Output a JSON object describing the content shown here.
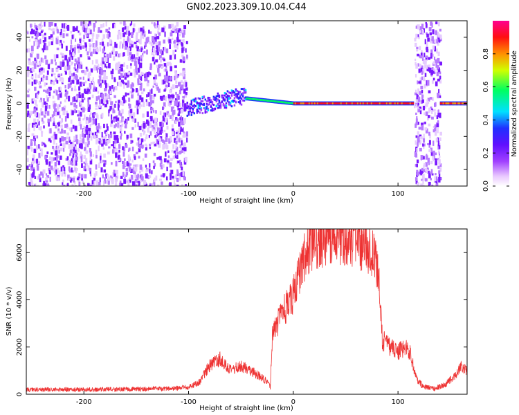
{
  "title": "GN02.2023.309.10.04.C44",
  "chart_data": [
    {
      "type": "heatmap",
      "xlabel": "Height of straight line (km)",
      "ylabel": "Frequency (Hz)",
      "xlim": [
        -255,
        166
      ],
      "ylim": [
        -50,
        50
      ],
      "xticks": [
        -200,
        -100,
        0,
        100
      ],
      "yticks": [
        -40,
        -20,
        0,
        20,
        40
      ],
      "colorbar": {
        "label": "Normalized spectral amplitude",
        "range": [
          0,
          1
        ],
        "ticks": [
          0.0,
          0.2,
          0.4,
          0.6,
          0.8
        ],
        "colormap": [
          "#ffffff",
          "#e9c8ff",
          "#a040ff",
          "#6010ff",
          "#2030ff",
          "#00e0ff",
          "#00ff60",
          "#d0ff00",
          "#ff9000",
          "#ff1010",
          "#ff0090"
        ]
      },
      "regions": [
        {
          "x": [
            -255,
            -102
          ],
          "freq": [
            -50,
            50
          ],
          "amplitude": 0.15,
          "pattern": "broadband noise"
        },
        {
          "x": [
            -102,
            -45
          ],
          "freq_center": [
            -3,
            5
          ],
          "amplitude": 0.4,
          "pattern": "drifting tone"
        },
        {
          "x": [
            -45,
            0
          ],
          "freq_center": [
            3,
            0
          ],
          "amplitude": 0.65,
          "pattern": "tone"
        },
        {
          "x": [
            0,
            115
          ],
          "freq_center": [
            0,
            0
          ],
          "amplitude": 0.95,
          "pattern": "steady tone"
        },
        {
          "x": [
            115,
            140
          ],
          "freq": [
            -50,
            50
          ],
          "amplitude": 0.15,
          "pattern": "broadband noise"
        },
        {
          "x": [
            140,
            166
          ],
          "freq_center": [
            0,
            0
          ],
          "amplitude": 0.9,
          "pattern": "steady tone"
        }
      ]
    },
    {
      "type": "line",
      "xlabel": "Height of straight line (km)",
      "ylabel": "SNR (10 * v/v)",
      "xlim": [
        -255,
        166
      ],
      "ylim": [
        0,
        7000
      ],
      "xticks": [
        -200,
        -100,
        0,
        100
      ],
      "yticks": [
        0,
        2000,
        4000,
        6000
      ],
      "color": "#ee3333",
      "series": [
        {
          "x": [
            -255,
            -200,
            -150,
            -110,
            -100,
            -90,
            -80,
            -70,
            -60,
            -50,
            -40,
            -30,
            -25,
            -22,
            -20,
            -15,
            -10,
            -5,
            0,
            5,
            10,
            20,
            30,
            40,
            50,
            60,
            70,
            78,
            82,
            85,
            90,
            100,
            108,
            112,
            118,
            125,
            135,
            145,
            155,
            160,
            166
          ],
          "y": [
            200,
            200,
            220,
            250,
            300,
            500,
            1200,
            1500,
            1000,
            1200,
            1000,
            700,
            500,
            300,
            2500,
            3000,
            3500,
            3800,
            4200,
            5000,
            5800,
            6400,
            6600,
            6700,
            6600,
            6400,
            6300,
            6000,
            4500,
            2300,
            2100,
            1800,
            2000,
            1700,
            600,
            300,
            250,
            400,
            800,
            1200,
            1000
          ]
        }
      ]
    }
  ]
}
